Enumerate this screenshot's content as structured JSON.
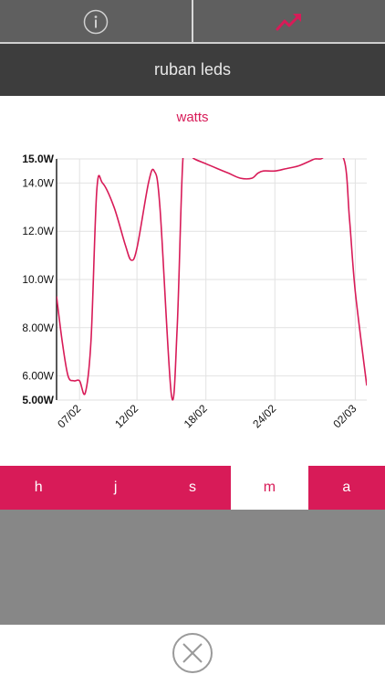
{
  "top_tabs": [
    {
      "name": "info",
      "icon": "info-icon"
    },
    {
      "name": "chart",
      "icon": "trend-up-icon",
      "active": true
    }
  ],
  "header": {
    "title": "ruban leds"
  },
  "chart_data": {
    "type": "line",
    "title": "watts",
    "y_ticks": [
      "15.0W",
      "14.0W",
      "12.0W",
      "10.0W",
      "8.00W",
      "6.00W",
      "5.00W"
    ],
    "y_tick_values": [
      15,
      14,
      12,
      10,
      8,
      6,
      5
    ],
    "ylim": [
      5,
      15
    ],
    "x_ticks": [
      "07/02",
      "12/02",
      "18/02",
      "24/02",
      "02/03"
    ],
    "xlim": [
      "2000-02-05",
      "2000-03-03"
    ],
    "grid": true,
    "series": [
      {
        "color": "#d81b58",
        "x": [
          "2000-02-05",
          "2000-02-05T12",
          "2000-02-06",
          "2000-02-06T12",
          "2000-02-07",
          "2000-02-07T12",
          "2000-02-08",
          "2000-02-08T12",
          "2000-02-09",
          "2000-02-10",
          "2000-02-11",
          "2000-02-11T12",
          "2000-02-12",
          "2000-02-13",
          "2000-02-13T12",
          "2000-02-14",
          "2000-02-15",
          "2000-02-15T12",
          "2000-02-16",
          "2000-02-16T12",
          "2000-02-17",
          "2000-02-18",
          "2000-02-19",
          "2000-02-20",
          "2000-02-21",
          "2000-02-22",
          "2000-02-22T12",
          "2000-02-23",
          "2000-02-24",
          "2000-02-25",
          "2000-02-26",
          "2000-02-27",
          "2000-02-27T12",
          "2000-02-28",
          "2000-02-28T12",
          "2000-03-01",
          "2000-03-01T12",
          "2000-03-02",
          "2000-03-03"
        ],
        "y": [
          9.3,
          7.4,
          6.0,
          5.8,
          5.8,
          5.3,
          7.5,
          13.7,
          14.0,
          13.0,
          11.4,
          10.8,
          11.3,
          14.0,
          14.5,
          13.0,
          5.2,
          8.0,
          15.0,
          15.2,
          15.0,
          14.8,
          14.6,
          14.4,
          14.2,
          14.2,
          14.4,
          14.5,
          14.5,
          14.6,
          14.7,
          14.9,
          15.0,
          15.0,
          15.1,
          15.0,
          12.5,
          9.5,
          5.6
        ]
      }
    ]
  },
  "periods": [
    {
      "label": "h",
      "active": false
    },
    {
      "label": "j",
      "active": false
    },
    {
      "label": "s",
      "active": false
    },
    {
      "label": "m",
      "active": true
    },
    {
      "label": "a",
      "active": false
    }
  ],
  "close": {
    "icon": "close-icon"
  }
}
